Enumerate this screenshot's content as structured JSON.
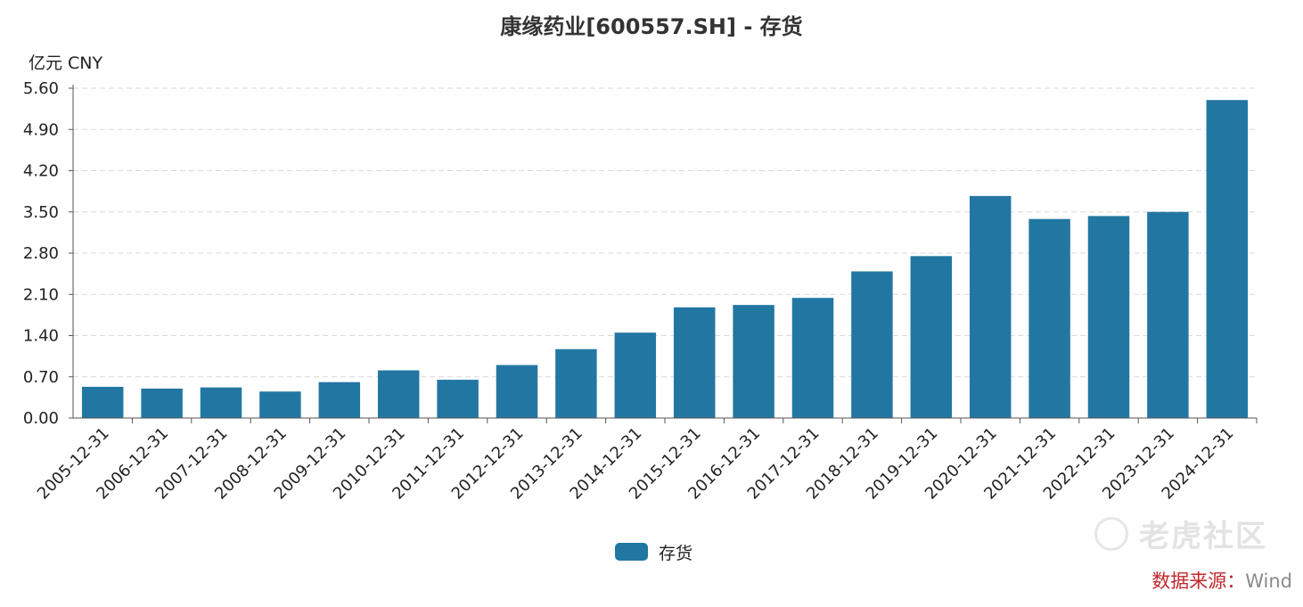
{
  "title": "康缘药业[600557.SH] - 存货",
  "unit_label": "亿元  CNY",
  "legend": {
    "label": "存货"
  },
  "watermark": {
    "text": "老虎社区",
    "icon": "tiger-logo-icon"
  },
  "source": {
    "prefix": "数据来源：",
    "name": "Wind"
  },
  "colors": {
    "bar": "#2277a2",
    "grid": "#d9d9d9",
    "axis": "#555555",
    "source": "#c0282d"
  },
  "chart_data": {
    "type": "bar",
    "title": "康缘药业[600557.SH] - 存货",
    "ylabel": "亿元  CNY",
    "xlabel": "",
    "ylim": [
      0,
      5.6
    ],
    "yticks": [
      "0.00",
      "0.70",
      "1.40",
      "2.10",
      "2.80",
      "3.50",
      "4.20",
      "4.90",
      "5.60"
    ],
    "grid": true,
    "legend_position": "bottom-center",
    "categories": [
      "2005-12-31",
      "2006-12-31",
      "2007-12-31",
      "2008-12-31",
      "2009-12-31",
      "2010-12-31",
      "2011-12-31",
      "2012-12-31",
      "2013-12-31",
      "2014-12-31",
      "2015-12-31",
      "2016-12-31",
      "2017-12-31",
      "2018-12-31",
      "2019-12-31",
      "2020-12-31",
      "2021-12-31",
      "2022-12-31",
      "2023-12-31",
      "2024-12-31"
    ],
    "series": [
      {
        "name": "存货",
        "values": [
          0.53,
          0.5,
          0.52,
          0.45,
          0.61,
          0.81,
          0.65,
          0.9,
          1.17,
          1.45,
          1.88,
          1.92,
          2.04,
          2.49,
          2.75,
          3.77,
          3.38,
          3.43,
          3.5,
          5.4
        ]
      }
    ]
  }
}
